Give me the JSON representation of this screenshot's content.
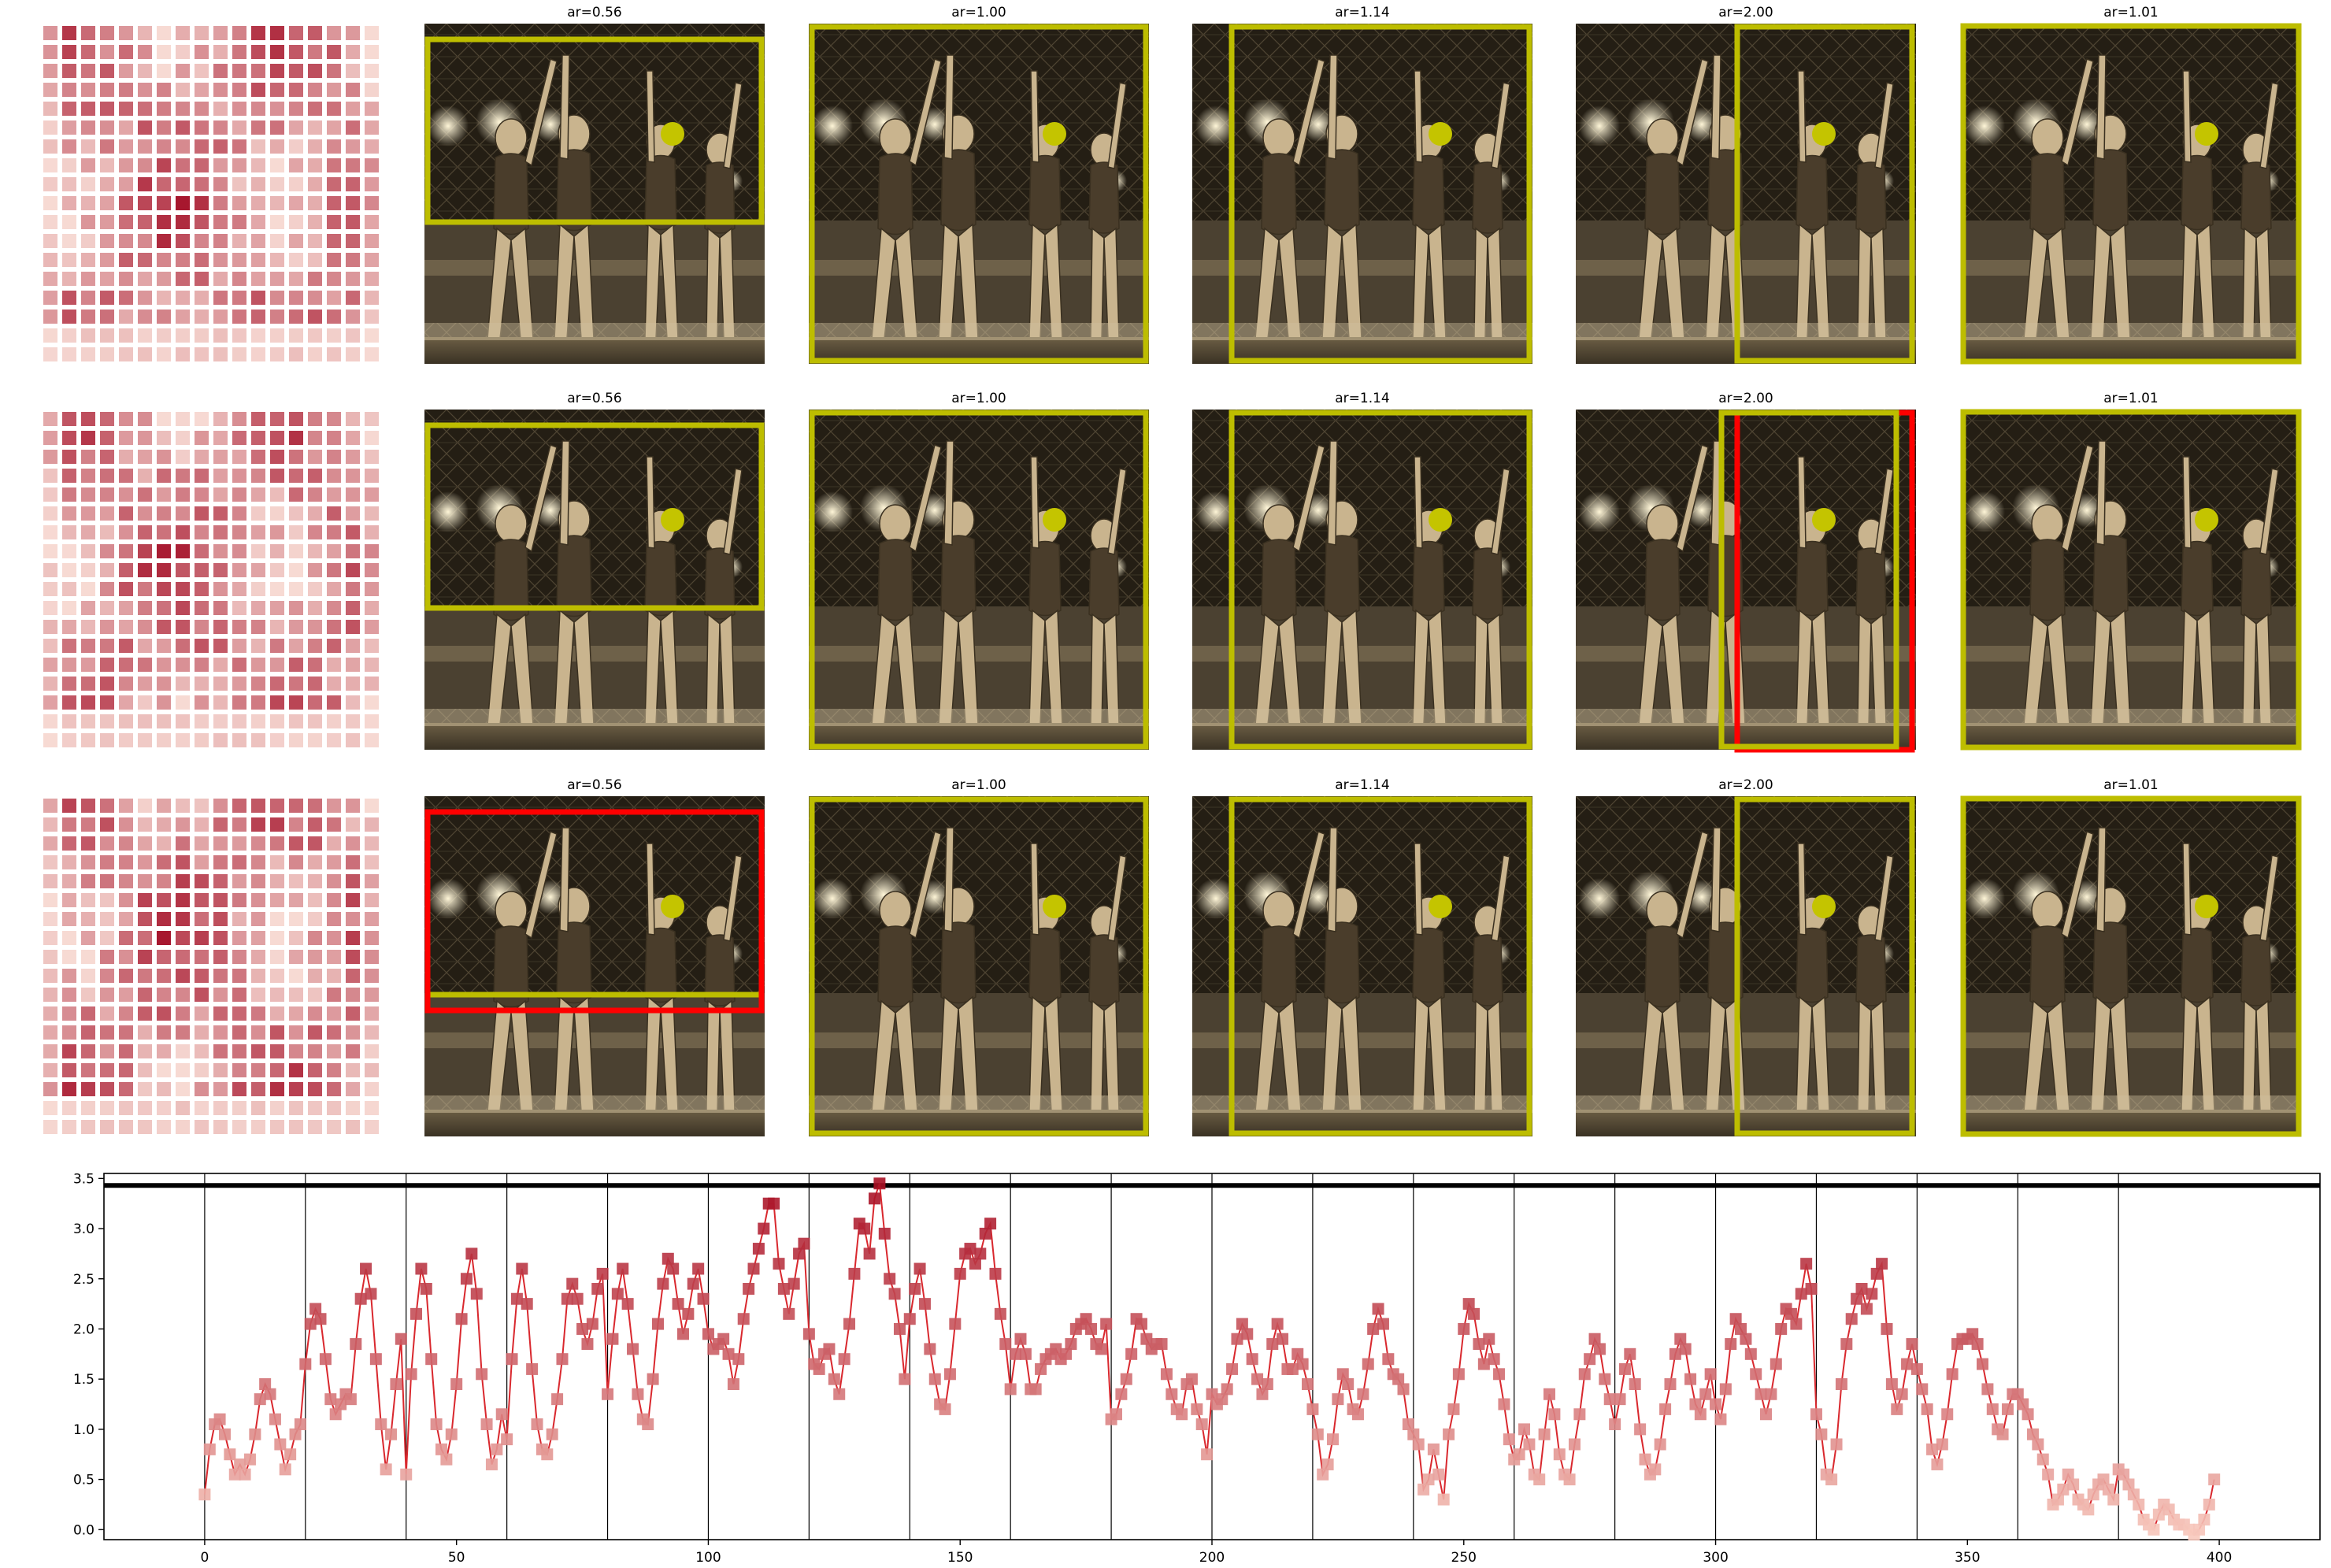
{
  "figure": {
    "panel_titles": [
      "ar=0.56",
      "ar=1.00",
      "ar=1.14",
      "ar=2.00",
      "ar=1.01"
    ],
    "rows": [
      {
        "panels": [
          {
            "title_index": 0,
            "box": "yellow"
          },
          {
            "title_index": 1,
            "box": "yellow"
          },
          {
            "title_index": 2,
            "box": "yellow"
          },
          {
            "title_index": 3,
            "box": "yellow"
          },
          {
            "title_index": 4,
            "box": "none"
          }
        ]
      },
      {
        "panels": [
          {
            "title_index": 0,
            "box": "yellow"
          },
          {
            "title_index": 1,
            "box": "yellow"
          },
          {
            "title_index": 2,
            "box": "yellow"
          },
          {
            "title_index": 3,
            "box": "yellow+red"
          },
          {
            "title_index": 4,
            "box": "none"
          }
        ]
      },
      {
        "panels": [
          {
            "title_index": 0,
            "box": "yellow+red"
          },
          {
            "title_index": 1,
            "box": "yellow"
          },
          {
            "title_index": 2,
            "box": "yellow"
          },
          {
            "title_index": 3,
            "box": "yellow"
          },
          {
            "title_index": 4,
            "box": "none"
          }
        ]
      }
    ],
    "colors": {
      "box_yellow": "#bdbd00",
      "box_red": "#ff0000",
      "dot": "#c4c400",
      "sepia_dark": "#2a2418",
      "sepia_light": "#d9c7a3",
      "heat_low": "#fbe4dc",
      "heat_high": "#a5122a"
    }
  },
  "chart_data": {
    "type": "line",
    "title": "",
    "xlabel": "",
    "ylabel": "",
    "xlim": [
      -20,
      420
    ],
    "ylim": [
      -0.1,
      3.55
    ],
    "xticks": [
      0,
      50,
      100,
      150,
      200,
      250,
      300,
      350,
      400
    ],
    "yticks": [
      0.0,
      0.5,
      1.0,
      1.5,
      2.0,
      2.5,
      3.0,
      3.5
    ],
    "vlines": [
      0,
      20,
      40,
      60,
      80,
      100,
      120,
      140,
      160,
      180,
      200,
      220,
      240,
      260,
      280,
      300,
      320,
      340,
      360,
      380
    ],
    "hline": 3.43,
    "grid": false,
    "marker": "square",
    "line_color": "#d9282e",
    "segments": [
      {
        "x0": 0,
        "vals": [
          0.35,
          0.8,
          1.05,
          1.1,
          0.95,
          0.75,
          0.55,
          0.65,
          0.55,
          0.7,
          0.95,
          1.3,
          1.45,
          1.35,
          1.1,
          0.85,
          0.6,
          0.75,
          0.95,
          1.05
        ]
      },
      {
        "x0": 20,
        "vals": [
          1.65,
          2.05,
          2.2,
          2.1,
          1.7,
          1.3,
          1.15,
          1.25,
          1.35,
          1.3,
          1.85,
          2.3,
          2.6,
          2.35,
          1.7,
          1.05,
          0.6,
          0.95,
          1.45,
          1.9
        ]
      },
      {
        "x0": 40,
        "vals": [
          0.55,
          1.55,
          2.15,
          2.6,
          2.4,
          1.7,
          1.05,
          0.8,
          0.7,
          0.95,
          1.45,
          2.1,
          2.5,
          2.75,
          2.35,
          1.55,
          1.05,
          0.65,
          0.8,
          1.15
        ]
      },
      {
        "x0": 60,
        "vals": [
          0.9,
          1.7,
          2.3,
          2.6,
          2.25,
          1.6,
          1.05,
          0.8,
          0.75,
          0.95,
          1.3,
          1.7,
          2.3,
          2.45,
          2.3,
          2.0,
          1.85,
          2.05,
          2.4,
          2.55
        ]
      },
      {
        "x0": 80,
        "vals": [
          1.35,
          1.9,
          2.35,
          2.6,
          2.25,
          1.8,
          1.35,
          1.1,
          1.05,
          1.5,
          2.05,
          2.45,
          2.7,
          2.6,
          2.25,
          1.95,
          2.15,
          2.45,
          2.6,
          2.3
        ]
      },
      {
        "x0": 100,
        "vals": [
          1.95,
          1.8,
          1.85,
          1.9,
          1.75,
          1.45,
          1.7,
          2.1,
          2.4,
          2.6,
          2.8,
          3.0,
          3.25,
          3.25,
          2.65,
          2.4,
          2.15,
          2.45,
          2.75,
          2.85
        ]
      },
      {
        "x0": 120,
        "vals": [
          1.95,
          1.65,
          1.6,
          1.75,
          1.8,
          1.5,
          1.35,
          1.7,
          2.05,
          2.55,
          3.05,
          3.0,
          2.75,
          3.3,
          3.45,
          2.95,
          2.5,
          2.35,
          2.0,
          1.5
        ]
      },
      {
        "x0": 140,
        "vals": [
          2.1,
          2.4,
          2.6,
          2.25,
          1.8,
          1.5,
          1.25,
          1.2,
          1.55,
          2.05,
          2.55,
          2.75,
          2.8,
          2.65,
          2.75,
          2.95,
          3.05,
          2.55,
          2.15,
          1.85
        ]
      },
      {
        "x0": 160,
        "vals": [
          1.4,
          1.75,
          1.9,
          1.75,
          1.4,
          1.4,
          1.6,
          1.7,
          1.75,
          1.8,
          1.7,
          1.75,
          1.85,
          2.0,
          2.05,
          2.1,
          2.0,
          1.85,
          1.8,
          2.05
        ]
      },
      {
        "x0": 180,
        "vals": [
          1.1,
          1.15,
          1.35,
          1.5,
          1.75,
          2.1,
          2.05,
          1.9,
          1.8,
          1.85,
          1.85,
          1.55,
          1.35,
          1.2,
          1.15,
          1.45,
          1.5,
          1.2,
          1.05,
          0.75
        ]
      },
      {
        "x0": 200,
        "vals": [
          1.35,
          1.25,
          1.3,
          1.4,
          1.6,
          1.9,
          2.05,
          1.95,
          1.7,
          1.5,
          1.35,
          1.45,
          1.85,
          2.05,
          1.9,
          1.6,
          1.6,
          1.75,
          1.65,
          1.45
        ]
      },
      {
        "x0": 220,
        "vals": [
          1.2,
          0.95,
          0.55,
          0.65,
          0.9,
          1.3,
          1.55,
          1.45,
          1.2,
          1.15,
          1.35,
          1.65,
          2.0,
          2.2,
          2.05,
          1.7,
          1.55,
          1.5,
          1.4,
          1.05
        ]
      },
      {
        "x0": 240,
        "vals": [
          0.95,
          0.85,
          0.4,
          0.5,
          0.8,
          0.55,
          0.3,
          0.95,
          1.2,
          1.55,
          2.0,
          2.25,
          2.15,
          1.85,
          1.65,
          1.9,
          1.7,
          1.55,
          1.25,
          0.9
        ]
      },
      {
        "x0": 260,
        "vals": [
          0.7,
          0.75,
          1.0,
          0.85,
          0.55,
          0.5,
          0.95,
          1.35,
          1.15,
          0.75,
          0.55,
          0.5,
          0.85,
          1.15,
          1.55,
          1.7,
          1.9,
          1.8,
          1.5,
          1.3
        ]
      },
      {
        "x0": 280,
        "vals": [
          1.05,
          1.3,
          1.6,
          1.75,
          1.45,
          1.0,
          0.7,
          0.55,
          0.6,
          0.85,
          1.2,
          1.45,
          1.75,
          1.9,
          1.8,
          1.5,
          1.25,
          1.15,
          1.35,
          1.55
        ]
      },
      {
        "x0": 300,
        "vals": [
          1.25,
          1.1,
          1.4,
          1.85,
          2.1,
          2.0,
          1.9,
          1.75,
          1.55,
          1.35,
          1.15,
          1.35,
          1.65,
          2.0,
          2.2,
          2.15,
          2.05,
          2.35,
          2.65,
          2.4
        ]
      },
      {
        "x0": 320,
        "vals": [
          1.15,
          0.95,
          0.55,
          0.5,
          0.85,
          1.45,
          1.85,
          2.1,
          2.3,
          2.4,
          2.2,
          2.35,
          2.55,
          2.65,
          2.0,
          1.45,
          1.2,
          1.35,
          1.65,
          1.85
        ]
      },
      {
        "x0": 340,
        "vals": [
          1.6,
          1.4,
          1.2,
          0.8,
          0.65,
          0.85,
          1.15,
          1.55,
          1.85,
          1.9,
          1.9,
          1.95,
          1.85,
          1.65,
          1.4,
          1.2,
          1.0,
          0.95,
          1.2,
          1.35
        ]
      },
      {
        "x0": 360,
        "vals": [
          1.35,
          1.25,
          1.15,
          0.95,
          0.85,
          0.7,
          0.55,
          0.25,
          0.3,
          0.4,
          0.55,
          0.45,
          0.3,
          0.25,
          0.2,
          0.35,
          0.45,
          0.5,
          0.4,
          0.3
        ]
      },
      {
        "x0": 380,
        "vals": [
          0.6,
          0.55,
          0.45,
          0.35,
          0.25,
          0.1,
          0.05,
          0.0,
          0.15,
          0.25,
          0.2,
          0.1,
          0.05,
          0.05,
          0.0,
          -0.05,
          0.0,
          0.1,
          0.25,
          0.5
        ]
      }
    ]
  }
}
